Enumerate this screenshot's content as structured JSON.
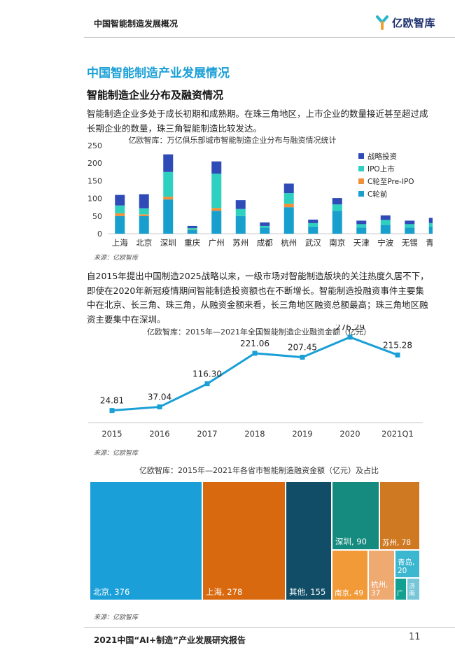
{
  "header": {
    "title": "中国智能制造发展概况",
    "logo_text": "亿欧智库"
  },
  "section_title": "中国智能制造产业发展情况",
  "subsection_title": "智能制造企业分布及融资情况",
  "paragraph1": "智能制造企业多处于成长初期和成熟期。在珠三角地区，上市企业的数量接近甚至超过成长期企业的数量，珠三角智能制造比较发达。",
  "paragraph2": "自2015年提出中国制造2025战略以来，一级市场对智能制造版块的关注热度久居不下，即使在2020年新冠疫情期间智能制造投资额也在不断增长。智能制造投融资事件主要集中在北京、长三角、珠三角，从融资金额来看，长三角地区融资总额最高；珠三角地区融资主要集中在深圳。",
  "source_label": "来源：亿欧智库",
  "footer": {
    "title": "2021中国“AI+制造”产业发展研究报告",
    "page_number": "11"
  },
  "colors": {
    "accent": "#1a9fd6",
    "strategic": "#2f4bb8",
    "ipo": "#2ed1c0",
    "c_pre_ipo": "#f0903a",
    "c_pre": "#189fcd"
  },
  "chart_data": [
    {
      "type": "bar",
      "stacked": true,
      "title": "亿欧智库：万亿俱乐部城市智能制造企业分布与融资情况统计",
      "categories": [
        "上海",
        "北京",
        "深圳",
        "重庆",
        "广州",
        "苏州",
        "成都",
        "杭州",
        "武汉",
        "南京",
        "天津",
        "宁波",
        "无锡",
        "青岛"
      ],
      "ylim": [
        0,
        250
      ],
      "yticks": [
        0,
        50,
        100,
        150,
        200,
        250
      ],
      "legend_position": "right",
      "series": [
        {
          "name": "C轮前",
          "color": "#189fcd",
          "values": [
            50,
            50,
            97,
            10,
            65,
            50,
            17,
            75,
            20,
            65,
            17,
            25,
            17,
            20
          ]
        },
        {
          "name": "C轮至Pre-IPO",
          "color": "#f0903a",
          "values": [
            8,
            5,
            8,
            1,
            8,
            0,
            0,
            10,
            0,
            0,
            0,
            0,
            0,
            0
          ]
        },
        {
          "name": "IPO上市",
          "color": "#2ed1c0",
          "values": [
            22,
            17,
            70,
            5,
            97,
            20,
            5,
            30,
            10,
            18,
            10,
            14,
            10,
            10
          ]
        },
        {
          "name": "战略投资",
          "color": "#2f4bb8",
          "values": [
            30,
            40,
            50,
            6,
            35,
            25,
            10,
            27,
            10,
            18,
            10,
            13,
            10,
            15
          ]
        }
      ]
    },
    {
      "type": "line",
      "title": "亿欧智库：2015年—2021年全国智能制造企业融资金额（亿元）",
      "x": [
        "2015",
        "2016",
        "2017",
        "2018",
        "2019",
        "2020",
        "2021Q1"
      ],
      "values": [
        24.81,
        37.04,
        116.3,
        221.06,
        207.45,
        276.29,
        215.28
      ],
      "labels": [
        "24.81",
        "37.04",
        "116.30",
        "221.06",
        "207.45",
        "276.29",
        "215.28"
      ],
      "ylim": [
        0,
        300
      ],
      "color": "#1a9fd6"
    },
    {
      "type": "treemap",
      "title": "亿欧智库：2015年—2021年各省市智能制造融资金额（亿元）及占比",
      "items": [
        {
          "label": "北京, 376",
          "value": 376,
          "color": "#1b9fd8"
        },
        {
          "label": "上海, 278",
          "value": 278,
          "color": "#d9690e"
        },
        {
          "label": "其他, 155",
          "value": 155,
          "color": "#114d66"
        },
        {
          "label": "深圳, 90",
          "value": 90,
          "color": "#158a7e"
        },
        {
          "label": "苏州, 78",
          "value": 78,
          "color": "#cf7a23"
        },
        {
          "label": "南京, 49",
          "value": 49,
          "color": "#f29a38"
        },
        {
          "label": "杭州, 37",
          "value": 37,
          "color": "#efaa72"
        },
        {
          "label": "青岛, 20",
          "value": 20,
          "color": "#3cb7d0"
        },
        {
          "label": "广",
          "color": "#12a090"
        },
        {
          "label": "济 南",
          "color": "#77c7d9"
        }
      ]
    }
  ]
}
